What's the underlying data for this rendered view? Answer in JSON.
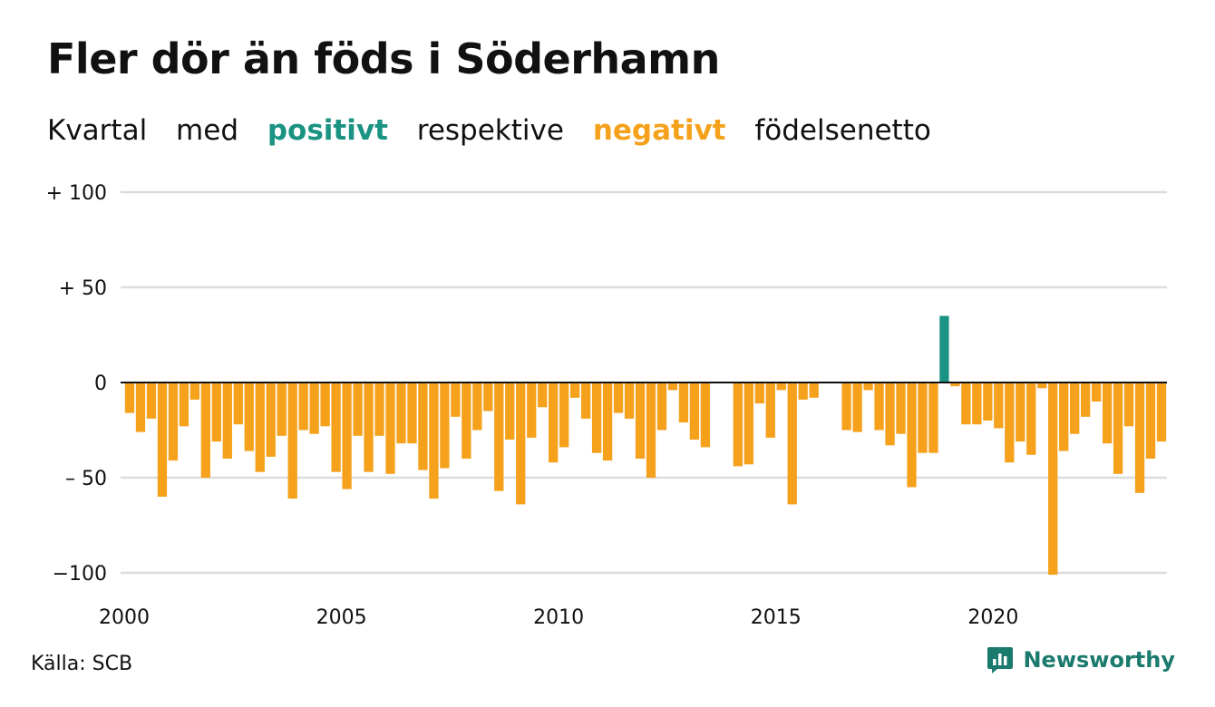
{
  "title": "Fler dör än föds i Söderhamn",
  "subtitle": {
    "w1": "Kvartal",
    "w2": "med",
    "positive_word": "positivt",
    "w3": "respektive",
    "negative_word": "negativt",
    "w4": "födelsenetto"
  },
  "colors": {
    "positive": "#1b9383",
    "negative": "#f5a11c",
    "grid": "#dcdcdc",
    "zero": "#111111"
  },
  "source": "Källa: SCB",
  "logo": {
    "text": "Newsworthy",
    "icon": "newsworthy-logo-icon"
  },
  "chart_data": {
    "type": "bar",
    "ylim": [
      -100,
      100
    ],
    "y_ticks": [
      {
        "value": 100,
        "label": "+ 100"
      },
      {
        "value": 50,
        "label": "+  50"
      },
      {
        "value": 0,
        "label": "0"
      },
      {
        "value": -50,
        "label": "– 50"
      },
      {
        "value": -100,
        "label": "−100"
      }
    ],
    "x_ticks": [
      "2000",
      "2005",
      "2010",
      "2015",
      "2020"
    ],
    "start_year": 2000,
    "grid": true,
    "categories": [
      "2000 K1",
      "2000 K2",
      "2000 K3",
      "2000 K4",
      "2001 K1",
      "2001 K2",
      "2001 K3",
      "2001 K4",
      "2002 K1",
      "2002 K2",
      "2002 K3",
      "2002 K4",
      "2003 K1",
      "2003 K2",
      "2003 K3",
      "2003 K4",
      "2004 K1",
      "2004 K2",
      "2004 K3",
      "2004 K4",
      "2005 K1",
      "2005 K2",
      "2005 K3",
      "2005 K4",
      "2006 K1",
      "2006 K2",
      "2006 K3",
      "2006 K4",
      "2007 K1",
      "2007 K2",
      "2007 K3",
      "2007 K4",
      "2008 K1",
      "2008 K2",
      "2008 K3",
      "2008 K4",
      "2009 K1",
      "2009 K2",
      "2009 K3",
      "2009 K4",
      "2010 K1",
      "2010 K2",
      "2010 K3",
      "2010 K4",
      "2011 K1",
      "2011 K2",
      "2011 K3",
      "2011 K4",
      "2012 K1",
      "2012 K2",
      "2012 K3",
      "2012 K4",
      "2013 K1",
      "2013 K2",
      "2013 K3",
      "2013 K4",
      "2014 K1",
      "2014 K2",
      "2014 K3",
      "2014 K4",
      "2015 K1",
      "2015 K2",
      "2015 K3",
      "2015 K4",
      "2016 K1",
      "2016 K2",
      "2016 K3",
      "2016 K4",
      "2017 K1",
      "2017 K2",
      "2017 K3",
      "2017 K4",
      "2018 K1",
      "2018 K2",
      "2018 K3",
      "2018 K4",
      "2019 K1",
      "2019 K2",
      "2019 K3",
      "2019 K4",
      "2020 K1",
      "2020 K2",
      "2020 K3",
      "2020 K4",
      "2021 K1",
      "2021 K2",
      "2021 K3",
      "2021 K4",
      "2022 K1",
      "2022 K2",
      "2022 K3",
      "2022 K4",
      "2023 K1",
      "2023 K2",
      "2023 K3",
      "2023 K4"
    ],
    "values": [
      -16,
      -26,
      -19,
      -60,
      -41,
      -23,
      -9,
      -50,
      -31,
      -40,
      -22,
      -36,
      -47,
      -39,
      -28,
      -61,
      -25,
      -27,
      -23,
      -47,
      -56,
      -28,
      -47,
      -28,
      -48,
      -32,
      -32,
      -46,
      -61,
      -45,
      -18,
      -40,
      -25,
      -15,
      -57,
      -30,
      -64,
      -29,
      -13,
      -42,
      -34,
      -8,
      -19,
      -37,
      -41,
      -16,
      -19,
      -40,
      -50,
      -25,
      -4,
      -21,
      -30,
      -34,
      0,
      0,
      -44,
      -43,
      -11,
      -29,
      -4,
      -64,
      -9,
      -8,
      0,
      0,
      -25,
      -26,
      -4,
      -25,
      -33,
      -27,
      -55,
      -37,
      -37,
      35,
      -2,
      -22,
      -22,
      -20,
      -24,
      -42,
      -31,
      -38,
      -3,
      -101,
      -36,
      -27,
      -18,
      -10,
      -32,
      -48,
      -23,
      -58,
      -40,
      -31
    ]
  }
}
